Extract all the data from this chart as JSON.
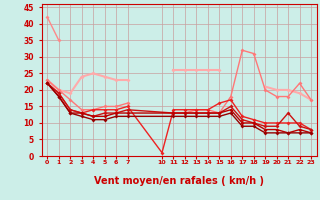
{
  "background_color": "#cceee8",
  "grid_color": "#c8a0a0",
  "xlabel": "Vent moyen/en rafales ( km/h )",
  "xlabel_color": "#cc0000",
  "xlabel_fontsize": 7,
  "xlim": [
    -0.5,
    23.5
  ],
  "ylim": [
    0,
    46
  ],
  "yticks": [
    0,
    5,
    10,
    15,
    20,
    25,
    30,
    35,
    40,
    45
  ],
  "xtick_vals": [
    0,
    1,
    2,
    3,
    4,
    5,
    6,
    7,
    10,
    11,
    12,
    13,
    14,
    15,
    16,
    17,
    18,
    19,
    20,
    21,
    22,
    23
  ],
  "series": [
    {
      "x": [
        0,
        1
      ],
      "y": [
        42,
        35
      ],
      "color": "#ff8888",
      "lw": 1.0,
      "marker": "D",
      "ms": 2.0
    },
    {
      "x": [
        0,
        1,
        2,
        3,
        4,
        5,
        6,
        7
      ],
      "y": [
        23,
        20,
        19,
        24,
        25,
        24,
        23,
        23
      ],
      "color": "#ffaaaa",
      "lw": 1.5,
      "marker": "D",
      "ms": 2.0
    },
    {
      "x": [
        11,
        12,
        13,
        14,
        15
      ],
      "y": [
        26,
        26,
        26,
        26,
        26
      ],
      "color": "#ffaaaa",
      "lw": 1.5,
      "marker": "D",
      "ms": 2.0
    },
    {
      "x": [
        19,
        20,
        21,
        22,
        23
      ],
      "y": [
        21,
        20,
        20,
        19,
        17
      ],
      "color": "#ffaaaa",
      "lw": 1.5,
      "marker": "D",
      "ms": 2.0
    },
    {
      "x": [
        0,
        1,
        2,
        3,
        4,
        5,
        6,
        7
      ],
      "y": [
        23,
        20,
        17,
        14,
        14,
        15,
        15,
        16
      ],
      "color": "#ff7777",
      "lw": 1.0,
      "marker": "D",
      "ms": 2.0
    },
    {
      "x": [
        11,
        12,
        13,
        14,
        15,
        16,
        17,
        18,
        19,
        20,
        21,
        22,
        23
      ],
      "y": [
        13,
        13,
        14,
        14,
        13,
        18,
        32,
        31,
        20,
        18,
        18,
        22,
        17
      ],
      "color": "#ff7777",
      "lw": 1.0,
      "marker": "D",
      "ms": 2.0
    },
    {
      "x": [
        0,
        1,
        2,
        3,
        4,
        5,
        6,
        7,
        10,
        11,
        12,
        13,
        14,
        15,
        16,
        17,
        18,
        19,
        20,
        21,
        22,
        23
      ],
      "y": [
        22,
        19,
        14,
        13,
        14,
        14,
        14,
        15,
        1,
        14,
        14,
        14,
        14,
        16,
        17,
        12,
        11,
        10,
        10,
        10,
        10,
        8
      ],
      "color": "#ee2222",
      "lw": 1.0,
      "marker": "D",
      "ms": 2.0
    },
    {
      "x": [
        0,
        1,
        2,
        3,
        4,
        5,
        6,
        7,
        11,
        12,
        13,
        14,
        15,
        16,
        17,
        18,
        19,
        20,
        21,
        22,
        23
      ],
      "y": [
        22,
        19,
        14,
        13,
        12,
        13,
        13,
        14,
        13,
        13,
        13,
        13,
        13,
        15,
        11,
        10,
        9,
        9,
        13,
        9,
        8
      ],
      "color": "#cc1111",
      "lw": 1.0,
      "marker": "D",
      "ms": 2.0
    },
    {
      "x": [
        0,
        1,
        2,
        3,
        4,
        5,
        6,
        7,
        11,
        12,
        13,
        14,
        15,
        16,
        17,
        18,
        19,
        20,
        21,
        22,
        23
      ],
      "y": [
        22,
        18,
        13,
        13,
        12,
        12,
        13,
        13,
        13,
        13,
        13,
        13,
        13,
        14,
        10,
        10,
        8,
        8,
        7,
        8,
        7
      ],
      "color": "#bb0000",
      "lw": 1.0,
      "marker": "D",
      "ms": 2.0
    },
    {
      "x": [
        0,
        1,
        2,
        3,
        4,
        5,
        6,
        7,
        11,
        12,
        13,
        14,
        15,
        16,
        17,
        18,
        19,
        20,
        21,
        22,
        23
      ],
      "y": [
        22,
        18,
        13,
        12,
        11,
        11,
        12,
        12,
        12,
        12,
        12,
        12,
        12,
        13,
        9,
        9,
        7,
        7,
        7,
        7,
        7
      ],
      "color": "#990000",
      "lw": 1.0,
      "marker": "D",
      "ms": 2.0
    }
  ],
  "arrows": {
    "x": [
      0,
      1,
      2,
      3,
      4,
      5,
      6,
      7,
      10,
      11,
      12,
      13,
      14,
      15,
      16,
      17,
      18,
      19,
      20,
      21,
      22,
      23
    ],
    "dx": [
      1,
      1,
      1,
      1,
      1,
      1,
      1,
      0,
      1,
      1,
      -1,
      -1,
      0,
      -1,
      -1,
      -1,
      -1,
      -1,
      -1,
      1,
      1,
      1
    ],
    "dy": [
      0,
      0,
      0,
      0,
      0,
      0,
      0,
      -1,
      0,
      -1,
      -1,
      -1,
      -1,
      -1,
      -1,
      -1,
      -1,
      0,
      0,
      1,
      1,
      0
    ]
  }
}
